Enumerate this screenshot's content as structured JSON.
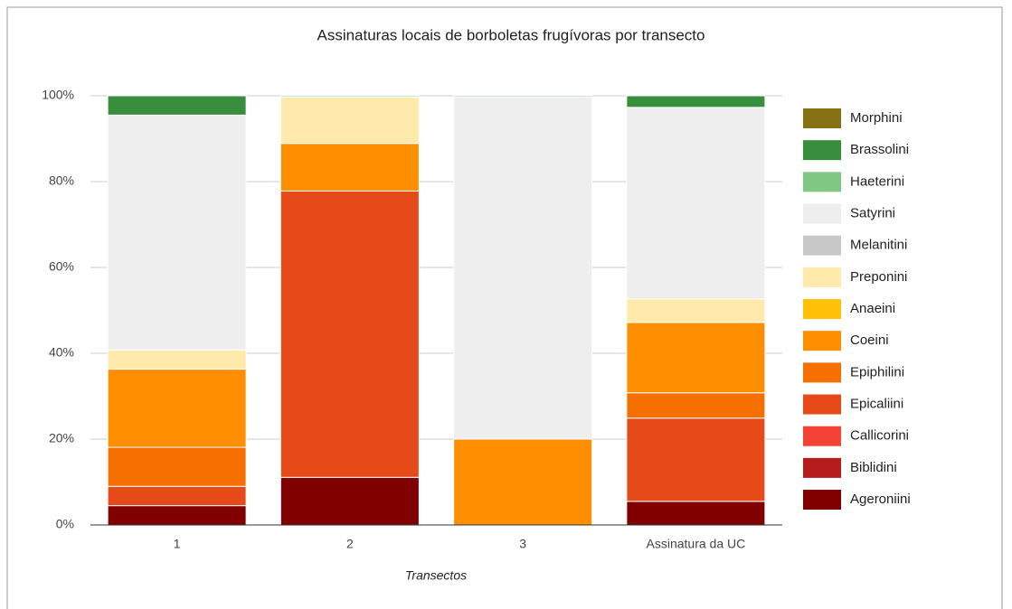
{
  "chart_data": {
    "type": "stacked_bar",
    "title": "Assinaturas locais de borboletas frugívoras por transecto",
    "x_label": "Transectos",
    "categories": [
      "1",
      "2",
      "3",
      "Assinatura da UC"
    ],
    "ylim": [
      0,
      100
    ],
    "yticks": [
      {
        "value": 0,
        "label": "0%"
      },
      {
        "value": 20,
        "label": "20%"
      },
      {
        "value": 40,
        "label": "40%"
      },
      {
        "value": 60,
        "label": "60%"
      },
      {
        "value": 80,
        "label": "80%"
      },
      {
        "value": 100,
        "label": "100%"
      }
    ],
    "grid": true,
    "legend": "right",
    "series": [
      {
        "name": "Ageroniini",
        "color": "#800000",
        "values": [
          4.5,
          11.1,
          0,
          5.5
        ]
      },
      {
        "name": "Biblidini",
        "color": "#b71c1c",
        "values": [
          0,
          0,
          0,
          0
        ]
      },
      {
        "name": "Callicorini",
        "color": "#f44336",
        "values": [
          0,
          0,
          0,
          0
        ]
      },
      {
        "name": "Epicaliini",
        "color": "#e64a19",
        "values": [
          4.5,
          66.7,
          0,
          19.4
        ]
      },
      {
        "name": "Epiphilini",
        "color": "#f57000",
        "values": [
          9.1,
          0,
          0,
          5.9
        ]
      },
      {
        "name": "Coeini",
        "color": "#ff8f00",
        "values": [
          18.2,
          11.1,
          20,
          16.4
        ]
      },
      {
        "name": "Anaeini",
        "color": "#ffc107",
        "values": [
          0,
          0,
          0,
          0
        ]
      },
      {
        "name": "Preponini",
        "color": "#ffe9ab",
        "values": [
          4.5,
          10.8,
          0,
          5.5
        ]
      },
      {
        "name": "Melanitini",
        "color": "#c8c8c8",
        "values": [
          0,
          0,
          0,
          0
        ]
      },
      {
        "name": "Satyrini",
        "color": "#eeeeee",
        "values": [
          54.7,
          0,
          79.7,
          44.6
        ]
      },
      {
        "name": "Haeterini",
        "color": "#81c784",
        "values": [
          0,
          0.3,
          0.3,
          0
        ]
      },
      {
        "name": "Brassolini",
        "color": "#388e3c",
        "values": [
          4.5,
          0,
          0,
          2.7
        ]
      },
      {
        "name": "Morphini",
        "color": "#857014",
        "values": [
          0,
          0,
          0,
          0
        ]
      }
    ]
  }
}
